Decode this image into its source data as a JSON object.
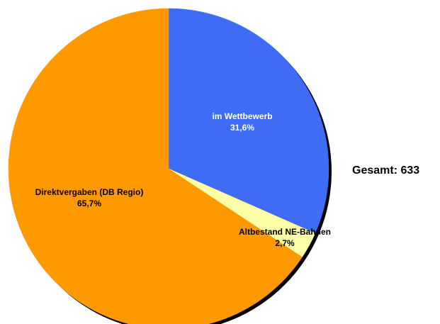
{
  "chart_data": {
    "type": "pie",
    "title": "",
    "total_label": "Gesamt: 633",
    "slices": [
      {
        "label": "im Wettbewerb",
        "value_text": "31,6%",
        "value": 31.6,
        "color": "#3E6CF5",
        "text_color": "#ffffff"
      },
      {
        "label": "Altbestand NE-Bahnen",
        "value_text": "2,7%",
        "value": 2.7,
        "color": "#FFFFA8",
        "text_color": "#000000"
      },
      {
        "label": "Direktvergaben (DB Regio)",
        "value_text": "65,7%",
        "value": 65.7,
        "color": "#FF9900",
        "text_color": "#000000"
      }
    ],
    "start_angle": "12 o'clock",
    "direction": "clockwise"
  }
}
